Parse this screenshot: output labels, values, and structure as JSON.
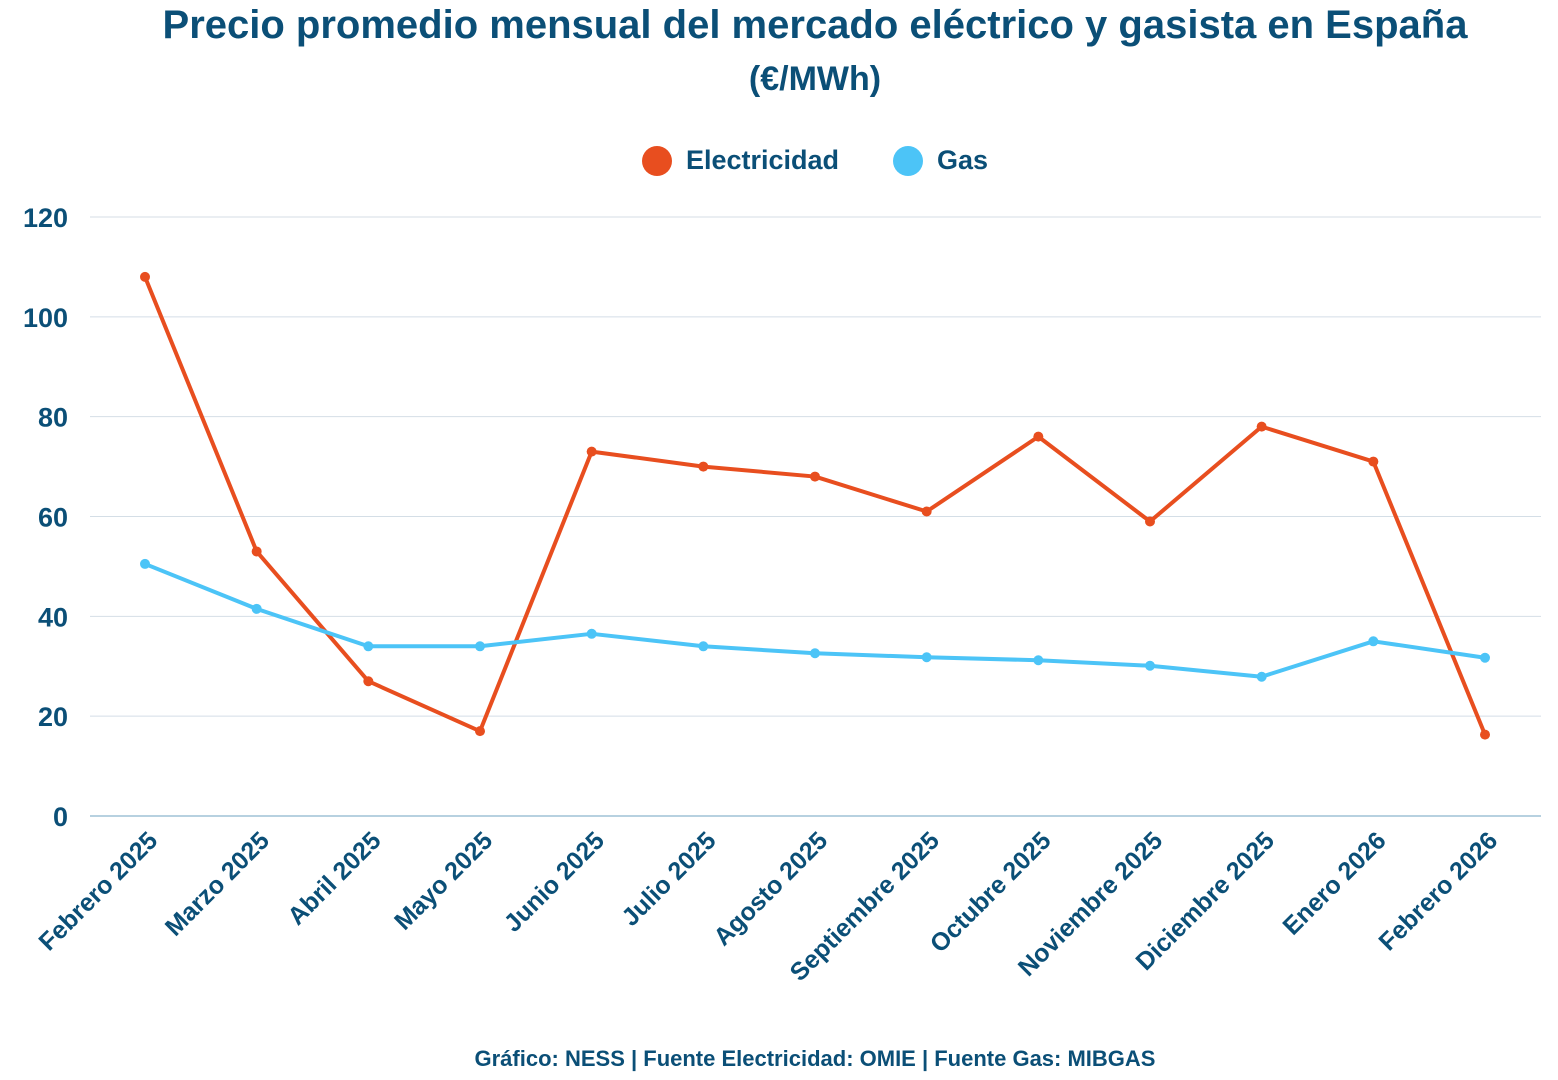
{
  "chart_data": {
    "type": "line",
    "title": "Precio promedio mensual del mercado eléctrico y gasista en España",
    "subtitle": "(€/MWh)",
    "categories": [
      "Febrero 2025",
      "Marzo 2025",
      "Abril 2025",
      "Mayo 2025",
      "Junio 2025",
      "Julio 2025",
      "Agosto 2025",
      "Septiembre 2025",
      "Octubre 2025",
      "Noviembre 2025",
      "Diciembre 2025",
      "Enero 2026",
      "Febrero 2026"
    ],
    "series": [
      {
        "name": "Electricidad",
        "color": "#e84e1f",
        "values": [
          108,
          53,
          27,
          17,
          73,
          70,
          68,
          61,
          76,
          59,
          78,
          71,
          16.3
        ]
      },
      {
        "name": "Gas",
        "color": "#4cc4f7",
        "values": [
          50.5,
          41.5,
          34,
          34,
          36.5,
          34,
          32.6,
          31.8,
          31.2,
          30.1,
          27.9,
          35,
          31.7
        ]
      }
    ],
    "ylim": [
      0,
      120
    ],
    "yticks": [
      0,
      20,
      40,
      60,
      80,
      100,
      120
    ],
    "grid": true,
    "legend_position": "top-center",
    "source": "Gráfico: NESS | Fuente Electricidad: OMIE | Fuente Gas: MIBGAS"
  }
}
